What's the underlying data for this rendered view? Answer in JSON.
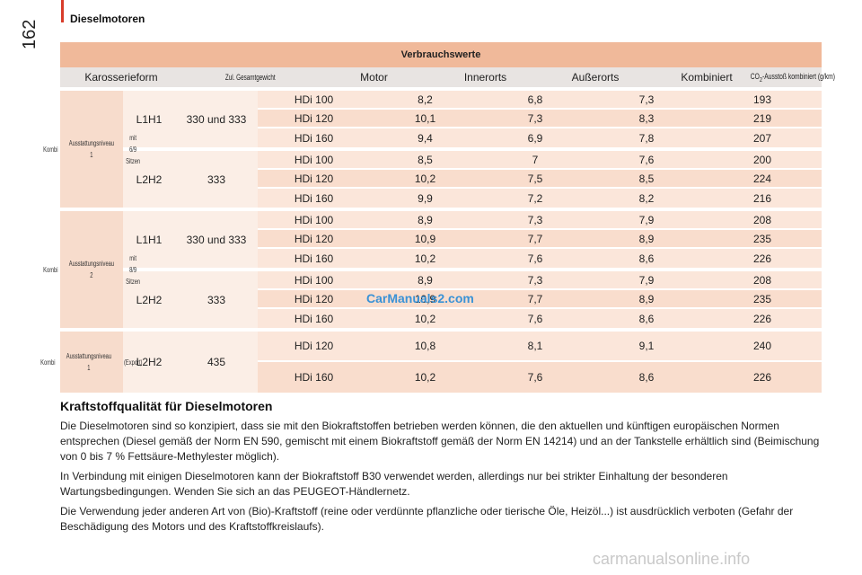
{
  "page": {
    "number": "162",
    "section": "Dieselmotoren"
  },
  "table": {
    "banner": "Verbrauchswerte",
    "headers": {
      "karosserieform": "Karosserieform",
      "gewicht": "Zul. Gesamtgewicht",
      "motor": "Motor",
      "innerorts": "Innerorts",
      "ausserorts": "Außerorts",
      "kombiniert": "Kombiniert",
      "co2_prefix": "CO",
      "co2_sub": "2",
      "co2_suffix": "-Ausstoß kombiniert (g/km)"
    },
    "groups": [
      {
        "label": [
          "Kombi",
          "Ausstattungsniveau 1",
          "mit 6/9 Sitzen"
        ],
        "subs": [
          {
            "size": "L1H1",
            "weight": "330 und 333",
            "rows": [
              {
                "motor": "HDi 100",
                "innerorts": "8,2",
                "ausserorts": "6,8",
                "kombiniert": "7,3",
                "co2": "193"
              },
              {
                "motor": "HDi 120",
                "innerorts": "10,1",
                "ausserorts": "7,3",
                "kombiniert": "8,3",
                "co2": "219"
              },
              {
                "motor": "HDi 160",
                "innerorts": "9,4",
                "ausserorts": "6,9",
                "kombiniert": "7,8",
                "co2": "207"
              }
            ]
          },
          {
            "size": "L2H2",
            "weight": "333",
            "rows": [
              {
                "motor": "HDi 100",
                "innerorts": "8,5",
                "ausserorts": "7",
                "kombiniert": "7,6",
                "co2": "200"
              },
              {
                "motor": "HDi 120",
                "innerorts": "10,2",
                "ausserorts": "7,5",
                "kombiniert": "8,5",
                "co2": "224"
              },
              {
                "motor": "HDi 160",
                "innerorts": "9,9",
                "ausserorts": "7,2",
                "kombiniert": "8,2",
                "co2": "216"
              }
            ]
          }
        ]
      },
      {
        "label": [
          "Kombi",
          "Ausstattungsniveau 2",
          "mit 8/9 Sitzen"
        ],
        "subs": [
          {
            "size": "L1H1",
            "weight": "330 und 333",
            "rows": [
              {
                "motor": "HDi 100",
                "innerorts": "8,9",
                "ausserorts": "7,3",
                "kombiniert": "7,9",
                "co2": "208"
              },
              {
                "motor": "HDi 120",
                "innerorts": "10,9",
                "ausserorts": "7,7",
                "kombiniert": "8,9",
                "co2": "235"
              },
              {
                "motor": "HDi 160",
                "innerorts": "10,2",
                "ausserorts": "7,6",
                "kombiniert": "8,6",
                "co2": "226"
              }
            ]
          },
          {
            "size": "L2H2",
            "weight": "333",
            "rows": [
              {
                "motor": "HDi 100",
                "innerorts": "8,9",
                "ausserorts": "7,3",
                "kombiniert": "7,9",
                "co2": "208"
              },
              {
                "motor": "HDi 120",
                "innerorts": "10,9",
                "ausserorts": "7,7",
                "kombiniert": "8,9",
                "co2": "235"
              },
              {
                "motor": "HDi 160",
                "innerorts": "10,2",
                "ausserorts": "7,6",
                "kombiniert": "8,6",
                "co2": "226"
              }
            ]
          }
        ]
      },
      {
        "label": [
          "Kombi",
          "Ausstattungsniveau 1",
          "(Export)"
        ],
        "subs": [
          {
            "size": "L2H2",
            "weight": "435",
            "rows": [
              {
                "motor": "HDi 120",
                "innerorts": "10,8",
                "ausserorts": "8,1",
                "kombiniert": "9,1",
                "co2": "240"
              },
              {
                "motor": "HDi 160",
                "innerorts": "10,2",
                "ausserorts": "7,6",
                "kombiniert": "8,6",
                "co2": "226"
              }
            ]
          }
        ]
      }
    ]
  },
  "watermark": "CarManuals2.com",
  "footer_watermark": "carmanualsonline.info",
  "section": {
    "title": "Kraftstoffqualität für Dieselmotoren",
    "paragraphs": [
      "Die Dieselmotoren sind so konzipiert, dass sie mit den Biokraftstoffen betrieben werden können, die den aktuellen und künftigen europäischen Normen entsprechen (Diesel gemäß der Norm EN 590, gemischt mit einem Biokraftstoff gemäß der Norm EN 14214) und an der Tankstelle erhältlich sind (Beimischung von 0 bis 7 % Fettsäure-Methylester möglich).",
      "In Verbindung mit einigen Dieselmotoren kann der Biokraftstoff B30 verwendet werden, allerdings nur bei strikter Einhaltung der besonderen Wartungsbedingungen. Wenden Sie sich an das PEUGEOT-Händlernetz.",
      "Die Verwendung jeder anderen Art von (Bio)-Kraftstoff (reine oder verdünnte pflanzliche oder tierische Öle, Heizöl...) ist ausdrücklich verboten (Gefahr der Beschädigung des Motors und des Kraftstoffkreislaufs)."
    ]
  }
}
